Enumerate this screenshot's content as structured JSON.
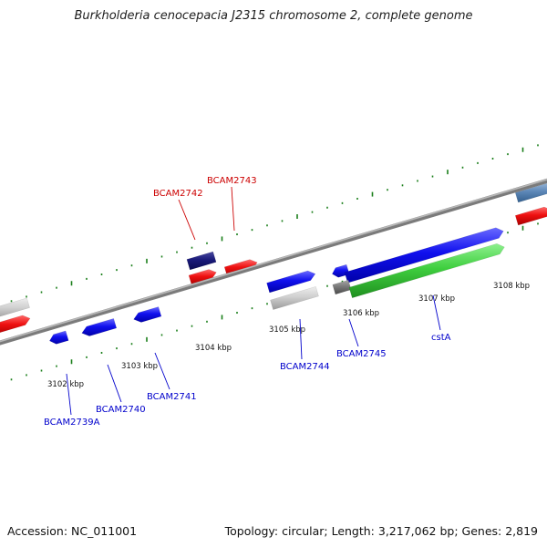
{
  "title": "Burkholderia cenocepacia J2315 chromosome 2, complete genome",
  "footer": {
    "accession": "Accession: NC_011001",
    "stats": "Topology: circular; Length: 3,217,062 bp; Genes: 2,819"
  },
  "colors": {
    "backbone": "#7b7b7b",
    "tick": "#1a7f1a",
    "forward_label": "#cc0000",
    "reverse_label": "#0000cc"
  },
  "ruler": [
    {
      "label": "3102 kbp"
    },
    {
      "label": "3103 kbp"
    },
    {
      "label": "3104 kbp"
    },
    {
      "label": "3105 kbp"
    },
    {
      "label": "3106 kbp"
    },
    {
      "label": "3107 kbp"
    },
    {
      "label": "3108 kbp"
    }
  ],
  "gene_labels": [
    {
      "name": "BCAM2742",
      "strand": "forward"
    },
    {
      "name": "BCAM2743",
      "strand": "forward"
    },
    {
      "name": "BCAM2739A",
      "strand": "reverse"
    },
    {
      "name": "BCAM2740",
      "strand": "reverse"
    },
    {
      "name": "BCAM2741",
      "strand": "reverse"
    },
    {
      "name": "BCAM2744",
      "strand": "reverse"
    },
    {
      "name": "BCAM2745",
      "strand": "reverse"
    },
    {
      "name": "cstA",
      "strand": "reverse"
    }
  ]
}
